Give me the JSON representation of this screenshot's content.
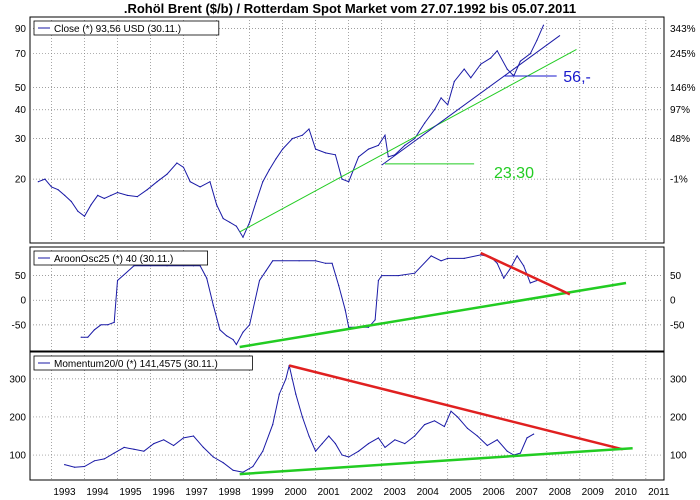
{
  "title": ".Rohöl Brent ($/b) / Rotterdam Spot Market vom 27.07.1992 bis 05.07.2011",
  "colors": {
    "price": "#1a1aa6",
    "support": "#22cc22",
    "resistance": "#e02020",
    "annotation_blue": "#1a1acc",
    "annotation_green": "#22cc22",
    "grid": "#808080"
  },
  "chart_data": [
    {
      "type": "line",
      "panel": "price",
      "legend": "Close (*) 93,56 USD (30.11.)",
      "legend_placement": "top-left",
      "grid": true,
      "y_scale": "log",
      "ylim": [
        11,
        97
      ],
      "y_ticks_left": [
        "90",
        "70",
        "50",
        "40",
        "30",
        "20"
      ],
      "y_tick_values_left": [
        90,
        70,
        50,
        40,
        30,
        20
      ],
      "y_ticks_right": [
        "343%",
        "245%",
        "146%",
        "97%",
        "48%",
        "-1%"
      ],
      "y_tick_values_right": [
        90,
        70,
        50,
        40,
        30,
        20
      ],
      "annotations": [
        {
          "text": "56,-",
          "x": 2008.5,
          "y": 56,
          "color": "annotation_blue",
          "line_from": [
            2006.7,
            56
          ]
        },
        {
          "text": "23,30",
          "x": 2006.4,
          "y": 21.5,
          "color": "annotation_green",
          "line_from": [
            2003.1,
            23.3
          ],
          "line_to": [
            2005.8,
            23.3
          ]
        }
      ],
      "trendlines": [
        {
          "color": "support",
          "points": [
            [
              1998.7,
              11.8
            ],
            [
              2008.9,
              73
            ]
          ]
        },
        {
          "color": "price",
          "points": [
            [
              2003.0,
              23.0
            ],
            [
              2008.4,
              84
            ]
          ]
        }
      ],
      "series": [
        {
          "x": [
            1992.6,
            1992.8,
            1993.0,
            1993.2,
            1993.4,
            1993.6,
            1993.8,
            1994.0,
            1994.2,
            1994.4,
            1994.6,
            1994.8,
            1995.0,
            1995.3,
            1995.6,
            1995.9,
            1996.2,
            1996.5,
            1996.8,
            1997.0,
            1997.2,
            1997.5,
            1997.8,
            1998.0,
            1998.2,
            1998.4,
            1998.6,
            1998.8,
            1999.0,
            1999.2,
            1999.4,
            1999.6,
            1999.8,
            2000.0,
            2000.3,
            2000.6,
            2000.8,
            2001.0,
            2001.3,
            2001.6,
            2001.8,
            2002.0,
            2002.3,
            2002.6,
            2002.9,
            2003.1,
            2003.2,
            2003.4,
            2003.7,
            2004.0,
            2004.3,
            2004.6,
            2004.8,
            2005.0,
            2005.2,
            2005.5,
            2005.7,
            2006.0,
            2006.3,
            2006.5,
            2006.8,
            2007.0,
            2007.2,
            2007.5,
            2007.7,
            2007.9
          ],
          "values": [
            19.5,
            20,
            18.5,
            18,
            17,
            16,
            14.5,
            13.8,
            15.5,
            17,
            16.5,
            17,
            17.5,
            17,
            16.8,
            18,
            19.5,
            21,
            23.5,
            22.5,
            19.5,
            18.5,
            19.5,
            15.5,
            13.5,
            13,
            12.5,
            11.2,
            13,
            16,
            19.5,
            22,
            24.5,
            27,
            30,
            31,
            33,
            27,
            26,
            25.5,
            20,
            19.5,
            25,
            27,
            28,
            31,
            25,
            25.5,
            28,
            30,
            35,
            40,
            45,
            42,
            53,
            60,
            55,
            63,
            67,
            72,
            60,
            56,
            65,
            70,
            80,
            93
          ]
        }
      ]
    },
    {
      "type": "line",
      "panel": "aroon",
      "legend": "AroonOsc25 (*) 40 (30.11.)",
      "legend_placement": "top-left",
      "grid": true,
      "ylim": [
        -95,
        100
      ],
      "y_ticks_left": [
        "50",
        "0",
        "-50"
      ],
      "y_tick_values_left": [
        50,
        0,
        -50
      ],
      "y_ticks_right": [
        "50",
        "0",
        "-50"
      ],
      "y_tick_values_right": [
        50,
        0,
        -50
      ],
      "trendlines": [
        {
          "color": "support",
          "points": [
            [
              1998.7,
              -95
            ],
            [
              2010.4,
              35
            ]
          ]
        },
        {
          "color": "resistance",
          "points": [
            [
              2006.0,
              96
            ],
            [
              2008.7,
              12
            ]
          ]
        }
      ],
      "series": [
        {
          "x": [
            1993.9,
            1994.1,
            1994.3,
            1994.5,
            1994.7,
            1994.9,
            1995.0,
            1995.5,
            1996.0,
            1996.5,
            1997.0,
            1997.3,
            1997.5,
            1997.7,
            1997.9,
            1998.1,
            1998.3,
            1998.5,
            1998.6,
            1998.8,
            1999.0,
            1999.3,
            1999.5,
            1999.7,
            2000.0,
            2000.5,
            2001.0,
            2001.3,
            2001.5,
            2001.7,
            2001.9,
            2002.0,
            2002.3,
            2002.6,
            2002.8,
            2002.9,
            2003.0,
            2003.5,
            2004.0,
            2004.5,
            2004.8,
            2005.0,
            2005.5,
            2006.0,
            2006.3,
            2006.5,
            2006.7,
            2006.9,
            2007.1,
            2007.3,
            2007.5,
            2007.7
          ],
          "values": [
            -75,
            -75,
            -60,
            -50,
            -50,
            -45,
            40,
            70,
            70,
            70,
            70,
            70,
            70,
            45,
            -10,
            -60,
            -72,
            -80,
            -90,
            -65,
            -50,
            40,
            60,
            80,
            80,
            80,
            80,
            75,
            75,
            30,
            -20,
            -55,
            -55,
            -55,
            -40,
            40,
            50,
            50,
            55,
            90,
            80,
            85,
            85,
            92,
            88,
            75,
            45,
            65,
            90,
            70,
            35,
            40
          ]
        }
      ]
    },
    {
      "type": "line",
      "panel": "momentum",
      "legend": "Momentum20/0 (*) 141,4575 (30.11.)",
      "legend_placement": "top-left",
      "grid": true,
      "ylim": [
        45,
        360
      ],
      "y_ticks_left": [
        "300",
        "200",
        "100"
      ],
      "y_tick_values_left": [
        300,
        200,
        100
      ],
      "y_ticks_right": [
        "300",
        "200",
        "100"
      ],
      "y_tick_values_right": [
        300,
        200,
        100
      ],
      "trendlines": [
        {
          "color": "resistance",
          "points": [
            [
              2000.2,
              335
            ],
            [
              2010.3,
              115
            ]
          ]
        },
        {
          "color": "support",
          "points": [
            [
              1998.7,
              50
            ],
            [
              2010.6,
              118
            ]
          ]
        }
      ],
      "series": [
        {
          "x": [
            1993.4,
            1993.7,
            1994.0,
            1994.3,
            1994.6,
            1994.9,
            1995.2,
            1995.5,
            1995.8,
            1996.1,
            1996.4,
            1996.7,
            1997.0,
            1997.3,
            1997.6,
            1997.9,
            1998.2,
            1998.5,
            1998.8,
            1999.1,
            1999.4,
            1999.7,
            1999.9,
            2000.1,
            2000.2,
            2000.4,
            2000.6,
            2000.8,
            2001.0,
            2001.2,
            2001.4,
            2001.6,
            2001.8,
            2002.0,
            2002.3,
            2002.6,
            2002.9,
            2003.1,
            2003.4,
            2003.7,
            2004.0,
            2004.3,
            2004.6,
            2004.9,
            2005.1,
            2005.3,
            2005.6,
            2005.9,
            2006.2,
            2006.5,
            2006.8,
            2007.0,
            2007.2,
            2007.4,
            2007.6
          ],
          "values": [
            75,
            68,
            70,
            85,
            90,
            105,
            120,
            115,
            110,
            130,
            140,
            125,
            145,
            150,
            120,
            95,
            80,
            60,
            55,
            70,
            110,
            180,
            260,
            300,
            335,
            260,
            200,
            150,
            110,
            130,
            150,
            130,
            100,
            95,
            110,
            130,
            145,
            120,
            140,
            130,
            150,
            180,
            190,
            175,
            215,
            200,
            170,
            150,
            125,
            140,
            110,
            100,
            105,
            145,
            155
          ]
        }
      ]
    }
  ],
  "x_axis": {
    "labels": [
      "1993",
      "1994",
      "1995",
      "1996",
      "1997",
      "1998",
      "1999",
      "2000",
      "2001",
      "2002",
      "2003",
      "2004",
      "2005",
      "2006",
      "2007",
      "2008",
      "2009",
      "2010",
      "2011"
    ],
    "range": [
      1992.35,
      2011.55
    ]
  }
}
